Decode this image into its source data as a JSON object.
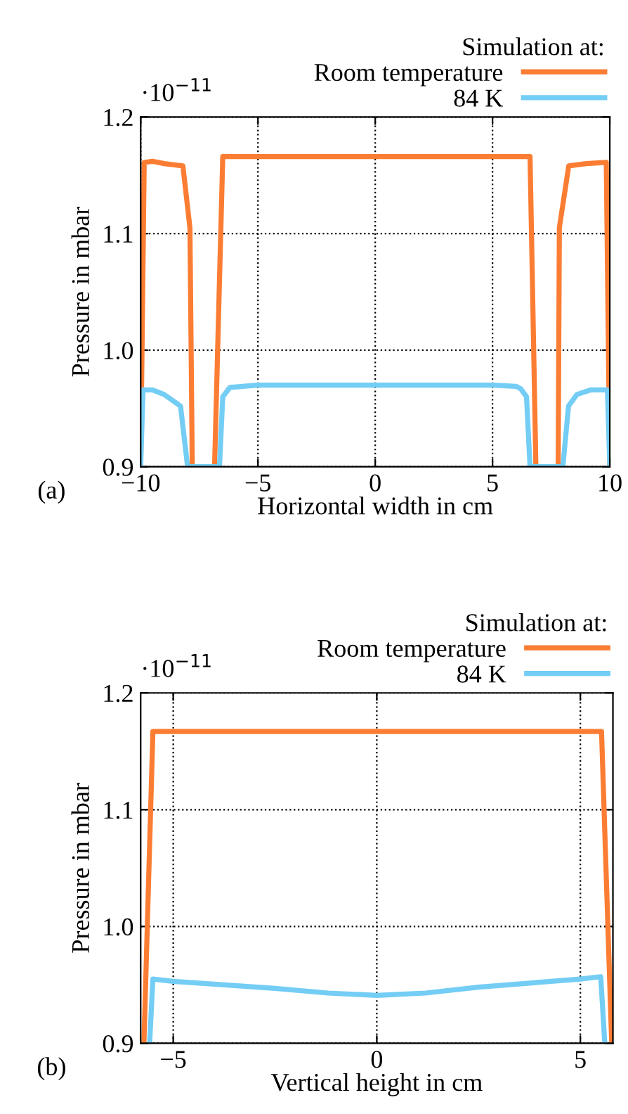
{
  "chart_data": [
    {
      "type": "line",
      "xlabel": "Horizontal width in cm",
      "ylabel": "Pressure in mbar",
      "legend_title": "Simulation at:",
      "annotations": [
        "·10$^{−11}$",
        "(a)"
      ],
      "xlim": [
        -10,
        10
      ],
      "ylim": [
        0.9,
        1.2
      ],
      "xticks": [
        -10,
        -5,
        0,
        5,
        10
      ],
      "yticks": [
        0.9,
        {
          "value": 1.0,
          "label": "1.0"
        },
        1.1,
        1.2
      ],
      "grid": true,
      "legend": "top right",
      "marker": "none",
      "line_style": "solid",
      "series": [
        {
          "name": "Room temperature",
          "color": "#fb7d33",
          "x": [
            -10,
            -9.85,
            -9.5,
            -9,
            -8.2,
            -7.9,
            -7.8,
            -6.85,
            -6.5,
            -3,
            0,
            3,
            6.6,
            6.85,
            7.8,
            7.85,
            8.25,
            9,
            9.85,
            10
          ],
          "values": [
            0.9,
            1.161,
            1.162,
            1.16,
            1.158,
            1.105,
            0.9,
            0.9,
            1.166,
            1.166,
            1.166,
            1.166,
            1.166,
            0.9,
            0.9,
            1.105,
            1.158,
            1.16,
            1.161,
            0.9
          ]
        },
        {
          "name": "84 K",
          "color": "#74cdf4",
          "x": [
            -10,
            -9.9,
            -9.5,
            -9,
            -8.3,
            -8.0,
            -6.64,
            -6.5,
            -6.2,
            -5,
            0,
            5,
            6.0,
            6.2,
            6.45,
            6.6,
            8.0,
            8.24,
            8.6,
            9.2,
            9.9,
            10
          ],
          "values": [
            0.9,
            0.966,
            0.966,
            0.962,
            0.952,
            0.9,
            0.9,
            0.96,
            0.968,
            0.97,
            0.97,
            0.97,
            0.969,
            0.967,
            0.96,
            0.9,
            0.9,
            0.952,
            0.962,
            0.966,
            0.966,
            0.9
          ]
        }
      ]
    },
    {
      "type": "line",
      "xlabel": "Vertical height in cm",
      "ylabel": "Pressure in mbar",
      "legend_title": "Simulation at:",
      "annotations": [
        "·10$^{−11}$",
        "(b)"
      ],
      "xlim": [
        -5.8,
        5.8
      ],
      "ylim": [
        0.9,
        1.2
      ],
      "xticks": [
        -5,
        0,
        5
      ],
      "yticks": [
        0.9,
        {
          "value": 1.0,
          "label": "1.0"
        },
        1.1,
        1.2
      ],
      "grid": true,
      "legend": "top right",
      "marker": "none",
      "line_style": "solid",
      "series": [
        {
          "name": "Room temperature",
          "color": "#fb7d33",
          "x": [
            -5.72,
            -5.5,
            -2.5,
            0,
            2.5,
            5.52,
            5.77
          ],
          "values": [
            0.9,
            1.167,
            1.167,
            1.167,
            1.167,
            1.167,
            0.9
          ]
        },
        {
          "name": "84 K",
          "color": "#74cdf4",
          "x": [
            -5.58,
            -5.5,
            -5,
            -2.5,
            -1.2,
            0,
            1.2,
            2.5,
            5,
            5.5,
            5.6
          ],
          "values": [
            0.9,
            0.955,
            0.953,
            0.947,
            0.943,
            0.941,
            0.943,
            0.948,
            0.955,
            0.957,
            0.9
          ]
        }
      ]
    }
  ]
}
